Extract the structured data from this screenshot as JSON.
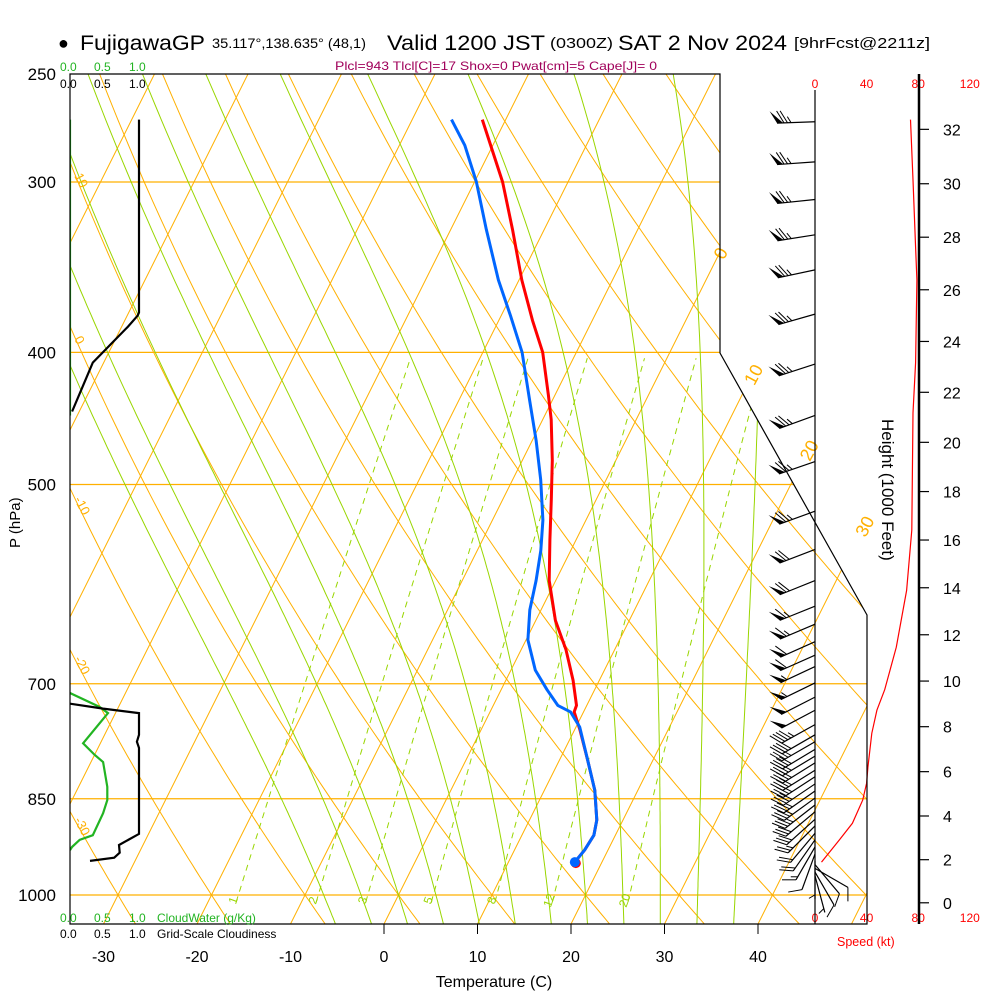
{
  "header": {
    "bullet": "●",
    "station": "FujigawaGP",
    "coords": "35.117°,138.635° (48,1)",
    "valid": "Valid 1200 JST",
    "utc": "(0300Z)",
    "date": "SAT 2 Nov 2024",
    "forecast": "[9hrFcst@2211z]"
  },
  "indices": "Plcl=943 Tlcl[C]=17 Shox=0 Pwat[cm]=5 Cape[J]= 0",
  "colors": {
    "temperature": "#ff0000",
    "dewpoint": "#0066ff",
    "isopleth": "#ffb000",
    "moist": "#99d600",
    "cloudwater": "#22b422",
    "speed": "#ff0000",
    "indices": "#a0005a"
  },
  "chart_data": {
    "type": "skew-t",
    "x_axis": {
      "label": "Temperature (C)",
      "ticks": [
        -30,
        -20,
        -10,
        0,
        10,
        20,
        30,
        40
      ]
    },
    "y_axis": {
      "label": "P (hPa)",
      "ticks": [
        250,
        300,
        400,
        500,
        700,
        850,
        1000
      ],
      "range": [
        1050,
        250
      ]
    },
    "isotherm_labels": [
      0,
      10,
      20,
      30
    ],
    "dry_adiabat_labels": [
      10,
      0,
      -10,
      -20,
      -30
    ],
    "mixing_ratio_lines": [
      1,
      2,
      3,
      5,
      8,
      12,
      20
    ],
    "moist_adiabats_thetaw": [
      -8,
      -4,
      0,
      4,
      8,
      12,
      16,
      20,
      24,
      28,
      32,
      36
    ],
    "temperature": [
      [
        946,
        17.1
      ],
      [
        927,
        17.5
      ],
      [
        904,
        17.7
      ],
      [
        881,
        17.2
      ],
      [
        838,
        15.4
      ],
      [
        796,
        13.0
      ],
      [
        757,
        10.6
      ],
      [
        734,
        9.0
      ],
      [
        726,
        8.9
      ],
      [
        696,
        7.2
      ],
      [
        661,
        4.8
      ],
      [
        629,
        2.1
      ],
      [
        588,
        -0.7
      ],
      [
        549,
        -2.8
      ],
      [
        513,
        -4.8
      ],
      [
        480,
        -6.8
      ],
      [
        448,
        -9.1
      ],
      [
        430,
        -10.7
      ],
      [
        400,
        -13.6
      ],
      [
        379,
        -16.4
      ],
      [
        354,
        -19.7
      ],
      [
        325,
        -23.4
      ],
      [
        300,
        -27.0
      ],
      [
        280,
        -30.6
      ],
      [
        270,
        -32.5
      ]
    ],
    "dewpoint": [
      [
        946,
        17.1
      ],
      [
        927,
        17.5
      ],
      [
        904,
        17.7
      ],
      [
        881,
        17.2
      ],
      [
        838,
        15.4
      ],
      [
        796,
        13.0
      ],
      [
        753,
        10.4
      ],
      [
        734,
        8.6
      ],
      [
        726,
        6.9
      ],
      [
        707,
        4.9
      ],
      [
        684,
        2.6
      ],
      [
        650,
        0.2
      ],
      [
        618,
        -1.2
      ],
      [
        588,
        -2.1
      ],
      [
        559,
        -3.2
      ],
      [
        531,
        -4.6
      ],
      [
        496,
        -7.0
      ],
      [
        464,
        -9.6
      ],
      [
        434,
        -12.4
      ],
      [
        400,
        -15.8
      ],
      [
        376,
        -19.0
      ],
      [
        354,
        -22.2
      ],
      [
        325,
        -26.2
      ],
      [
        300,
        -29.8
      ],
      [
        282,
        -33.0
      ],
      [
        270,
        -35.8
      ]
    ],
    "wind_barbs": [
      [
        271,
        268,
        75
      ],
      [
        290,
        266,
        75
      ],
      [
        309,
        264,
        75
      ],
      [
        328,
        261,
        75
      ],
      [
        348,
        258,
        75
      ],
      [
        375,
        254,
        75
      ],
      [
        408,
        252,
        75
      ],
      [
        445,
        250,
        75
      ],
      [
        481,
        251,
        75
      ],
      [
        523,
        250,
        75
      ],
      [
        558,
        249,
        70
      ],
      [
        588,
        248,
        70
      ],
      [
        614,
        248,
        65
      ],
      [
        633,
        247,
        65
      ],
      [
        652,
        246,
        60
      ],
      [
        667,
        246,
        60
      ],
      [
        680,
        245,
        55
      ],
      [
        699,
        244,
        55
      ],
      [
        716,
        243,
        50
      ],
      [
        732,
        242,
        50
      ],
      [
        750,
        241,
        45
      ],
      [
        763,
        240,
        40
      ],
      [
        772,
        240,
        40
      ],
      [
        782,
        239,
        40
      ],
      [
        791,
        239,
        40
      ],
      [
        800,
        238,
        40
      ],
      [
        810,
        238,
        40
      ],
      [
        819,
        237,
        40
      ],
      [
        829,
        236,
        40
      ],
      [
        839,
        235,
        35
      ],
      [
        849,
        234,
        35
      ],
      [
        859,
        232,
        35
      ],
      [
        869,
        230,
        30
      ],
      [
        880,
        228,
        30
      ],
      [
        890,
        225,
        25
      ],
      [
        901,
        220,
        20
      ],
      [
        911,
        215,
        20
      ],
      [
        922,
        210,
        15
      ],
      [
        933,
        200,
        10
      ],
      [
        944,
        180,
        5
      ],
      [
        950,
        140,
        10
      ],
      [
        956,
        120,
        10
      ],
      [
        962,
        150,
        8
      ],
      [
        968,
        165,
        6
      ]
    ],
    "wind_speed_profile": [
      [
        946,
        5
      ],
      [
        911,
        19
      ],
      [
        886,
        29
      ],
      [
        852,
        37
      ],
      [
        828,
        40
      ],
      [
        806,
        41
      ],
      [
        761,
        44
      ],
      [
        732,
        48
      ],
      [
        707,
        54
      ],
      [
        658,
        63
      ],
      [
        598,
        71
      ],
      [
        540,
        75
      ],
      [
        443,
        76
      ],
      [
        407,
        78
      ],
      [
        354,
        79
      ],
      [
        335,
        78
      ],
      [
        299,
        76
      ],
      [
        270,
        74
      ]
    ],
    "speed_axis": {
      "label": "Speed (kt)",
      "ticks": [
        0,
        40,
        80,
        120
      ]
    },
    "height_axis": {
      "label": "Height (1000 Feet)",
      "ticks": [
        0,
        2,
        4,
        6,
        8,
        10,
        12,
        14,
        16,
        18,
        20,
        22,
        24,
        26,
        28,
        30,
        32
      ]
    },
    "cloud_water": {
      "label": "CloudWater (g/Kg)",
      "ticks": [
        "0.0",
        "0.5",
        "1.0"
      ],
      "segments": [
        [
          [
            270,
            0
          ],
          [
            445,
            0
          ]
        ],
        [
          [
            711,
            0
          ],
          [
            728,
            0.43
          ],
          [
            735.5,
            0.55
          ],
          [
            774,
            0.19
          ],
          [
            789.5,
            0.36
          ],
          [
            799,
            0.48
          ],
          [
            833,
            0.54
          ],
          [
            852,
            0.54
          ],
          [
            871,
            0.48
          ],
          [
            904,
            0.33
          ],
          [
            911,
            0.14
          ],
          [
            922,
            0.03
          ],
          [
            927,
            0
          ]
        ]
      ]
    },
    "cloudiness": {
      "label": "Grid-Scale Cloudiness",
      "ticks": [
        "0.0",
        "0.5",
        "1.0"
      ],
      "segments": [
        [
          [
            270,
            1.0
          ],
          [
            374,
            1.0
          ],
          [
            376,
            0.98
          ],
          [
            383,
            0.84
          ],
          [
            407,
            0.33
          ],
          [
            442,
            0.03
          ]
        ],
        [
          [
            724,
            0
          ],
          [
            730,
            0.48
          ],
          [
            735.5,
            1.0
          ],
          [
            763,
            1.0
          ],
          [
            772,
            0.97
          ],
          [
            780,
            1.0
          ],
          [
            902,
            1.0
          ],
          [
            919,
            0.71
          ],
          [
            931,
            0.72
          ],
          [
            939,
            0.64
          ],
          [
            944,
            0.29
          ]
        ]
      ]
    }
  }
}
